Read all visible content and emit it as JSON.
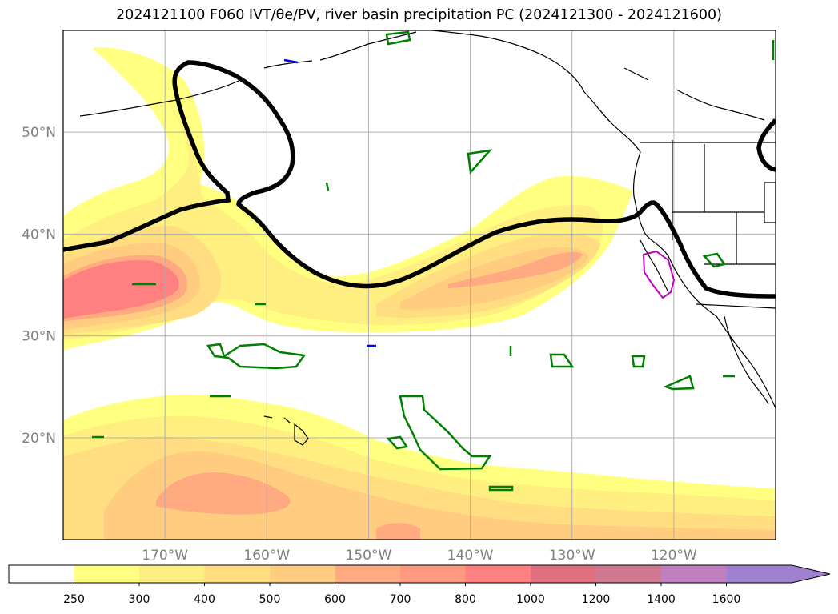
{
  "title": "2024121100 F060 IVT/θe/PV, river basin precipitation PC (2024121300 - 2024121600)",
  "map": {
    "lon_range": [
      -180,
      -110
    ],
    "lat_range": [
      10,
      60
    ],
    "lon_ticks": [
      {
        "value": -170,
        "label": "170°W"
      },
      {
        "value": -160,
        "label": "160°W"
      },
      {
        "value": -150,
        "label": "150°W"
      },
      {
        "value": -140,
        "label": "140°W"
      },
      {
        "value": -130,
        "label": "130°W"
      },
      {
        "value": -120,
        "label": "120°W"
      }
    ],
    "lat_ticks": [
      {
        "value": 20,
        "label": "20°N"
      },
      {
        "value": 30,
        "label": "30°N"
      },
      {
        "value": 40,
        "label": "40°N"
      },
      {
        "value": 50,
        "label": "50°N"
      }
    ],
    "grid": true,
    "colors": {
      "contour_black": "#000000",
      "region_green": "#008000",
      "region_magenta": "#c000c0",
      "region_blue": "#0000ff",
      "gridline": "#b0b0b0",
      "tick_label": "#808080"
    }
  },
  "colorbar": {
    "levels": [
      "250",
      "300",
      "400",
      "500",
      "600",
      "700",
      "800",
      "1000",
      "1200",
      "1400",
      "1600"
    ],
    "colors": [
      "#ffffff",
      "#ffff80",
      "#ffee80",
      "#ffdd80",
      "#ffcc80",
      "#ffaa80",
      "#ff9980",
      "#ff8080",
      "#e07080",
      "#d07890",
      "#c080c0",
      "#a080d0"
    ],
    "extend": "max"
  }
}
